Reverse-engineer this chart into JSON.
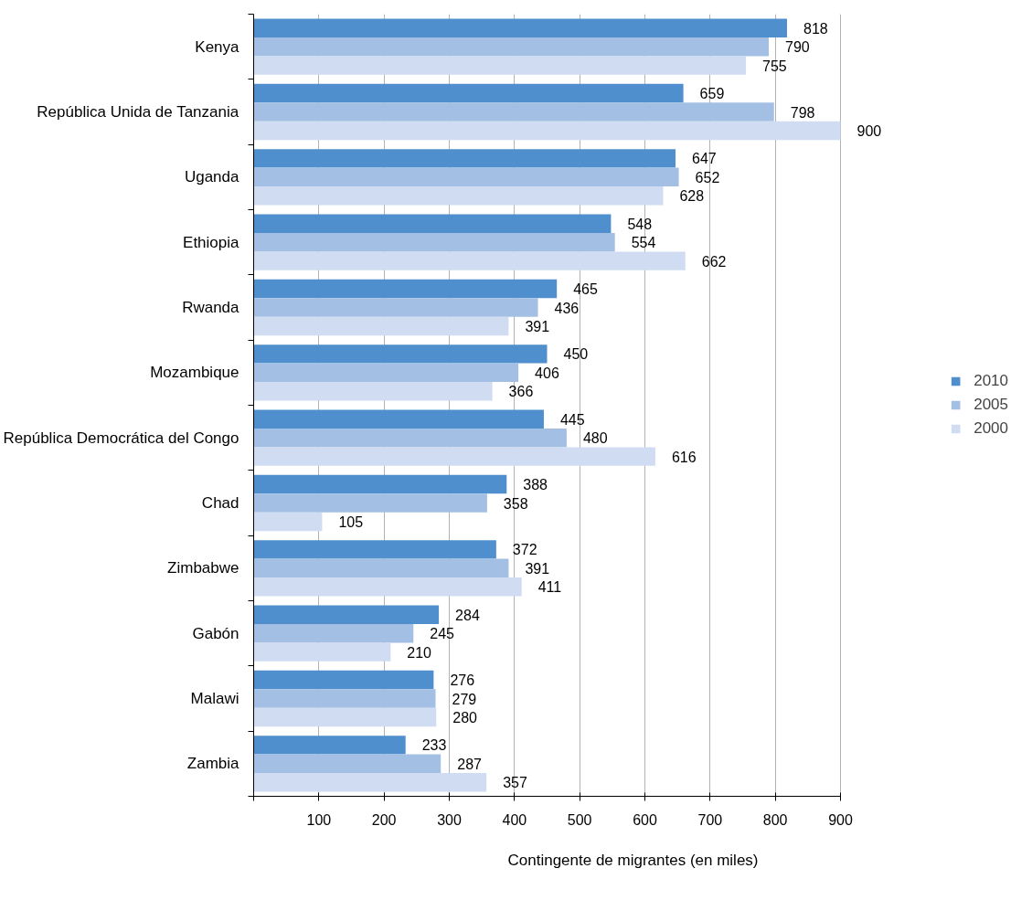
{
  "chart_data": {
    "type": "bar",
    "orientation": "horizontal",
    "xlabel": "Contingente de migrantes (en miles)",
    "categories": [
      "Kenya",
      "República Unida de Tanzania",
      "Uganda",
      "Ethiopia",
      "Rwanda",
      "Mozambique",
      "República Democrática del Congo",
      "Chad",
      "Zimbabwe",
      "Gabón",
      "Malawi",
      "Zambia"
    ],
    "series": [
      {
        "name": "2010",
        "color": "#4f8fcd",
        "values": [
          818,
          659,
          647,
          548,
          465,
          450,
          445,
          388,
          372,
          284,
          276,
          233
        ]
      },
      {
        "name": "2005",
        "color": "#a3bfe3",
        "values": [
          790,
          798,
          652,
          554,
          436,
          406,
          480,
          358,
          391,
          245,
          279,
          287
        ]
      },
      {
        "name": "2000",
        "color": "#cfdcf1",
        "values": [
          755,
          900,
          628,
          662,
          391,
          366,
          616,
          105,
          411,
          210,
          280,
          357
        ]
      }
    ],
    "xlim": [
      0,
      900
    ],
    "xticks": [
      {
        "value": 0,
        "label": null
      },
      100,
      200,
      300,
      400,
      500,
      600,
      700,
      800,
      900
    ],
    "grid": "x",
    "legend": "right",
    "data_labels": true
  }
}
